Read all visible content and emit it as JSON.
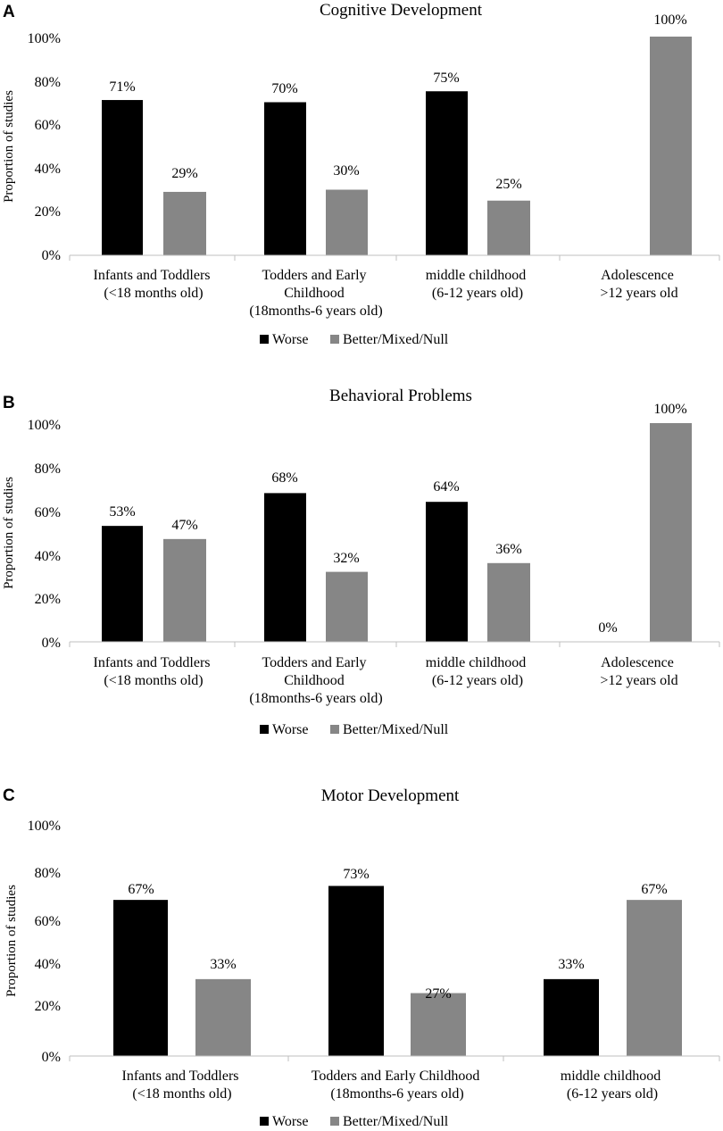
{
  "colors": {
    "worse": "#000000",
    "better": "#868686",
    "axis": "#bfbfbf"
  },
  "chart_data": [
    {
      "type": "bar",
      "panel": "A",
      "title": "Cognitive Development",
      "ylabel": "Proportion of studies",
      "xlabel": "",
      "ylim": [
        0,
        100
      ],
      "yticks": [
        "0%",
        "20%",
        "40%",
        "60%",
        "80%",
        "100%"
      ],
      "categories": [
        [
          "Infants and Toddlers",
          "(<18 months old)"
        ],
        [
          "Todders and Early",
          "Childhood",
          "(18months-6 years old)"
        ],
        [
          "middle childhood",
          "(6-12 years old)"
        ],
        [
          "Adolescence",
          ">12 years old"
        ]
      ],
      "series": [
        {
          "name": "Worse",
          "values": [
            71,
            70,
            75,
            null
          ],
          "labels": [
            "71%",
            "70%",
            "75%",
            null
          ]
        },
        {
          "name": "Better/Mixed/Null",
          "values": [
            29,
            30,
            25,
            100
          ],
          "labels": [
            "29%",
            "30%",
            "25%",
            "100%"
          ]
        }
      ],
      "legend": [
        "Worse",
        "Better/Mixed/Null"
      ],
      "legend_position": "bottom"
    },
    {
      "type": "bar",
      "panel": "B",
      "title": "Behavioral Problems",
      "ylabel": "Proportion of studies",
      "xlabel": "",
      "ylim": [
        0,
        100
      ],
      "yticks": [
        "0%",
        "20%",
        "40%",
        "60%",
        "80%",
        "100%"
      ],
      "categories": [
        [
          "Infants and Toddlers",
          "(<18 months old)"
        ],
        [
          "Todders and Early",
          "Childhood",
          "(18months-6 years old)"
        ],
        [
          "middle childhood",
          "(6-12 years old)"
        ],
        [
          "Adolescence",
          ">12 years old"
        ]
      ],
      "series": [
        {
          "name": "Worse",
          "values": [
            53,
            68,
            64,
            0
          ],
          "labels": [
            "53%",
            "68%",
            "64%",
            "0%"
          ]
        },
        {
          "name": "Better/Mixed/Null",
          "values": [
            47,
            32,
            36,
            100
          ],
          "labels": [
            "47%",
            "32%",
            "36%",
            "100%"
          ]
        }
      ],
      "legend": [
        "Worse",
        "Better/Mixed/Null"
      ],
      "legend_position": "bottom"
    },
    {
      "type": "bar",
      "panel": "C",
      "title": "Motor Development",
      "ylabel": "Proportion of studies",
      "xlabel": "",
      "ylim": [
        0,
        100
      ],
      "yticks": [
        "0%",
        "20%",
        "40%",
        "60%",
        "80%",
        "100%"
      ],
      "categories": [
        [
          "Infants and Toddlers",
          "(<18 months old)"
        ],
        [
          "Todders and Early Childhood",
          "(18months-6 years old)"
        ],
        [
          "middle childhood",
          "(6-12 years old)"
        ]
      ],
      "series": [
        {
          "name": "Worse",
          "values": [
            67,
            73,
            33
          ],
          "labels": [
            "67%",
            "73%",
            "33%"
          ]
        },
        {
          "name": "Better/Mixed/Null",
          "values": [
            33,
            27,
            67
          ],
          "labels": [
            "33%",
            "27%",
            "67%"
          ]
        }
      ],
      "legend": [
        "Worse",
        "Better/Mixed/Null"
      ],
      "legend_position": "bottom"
    }
  ]
}
